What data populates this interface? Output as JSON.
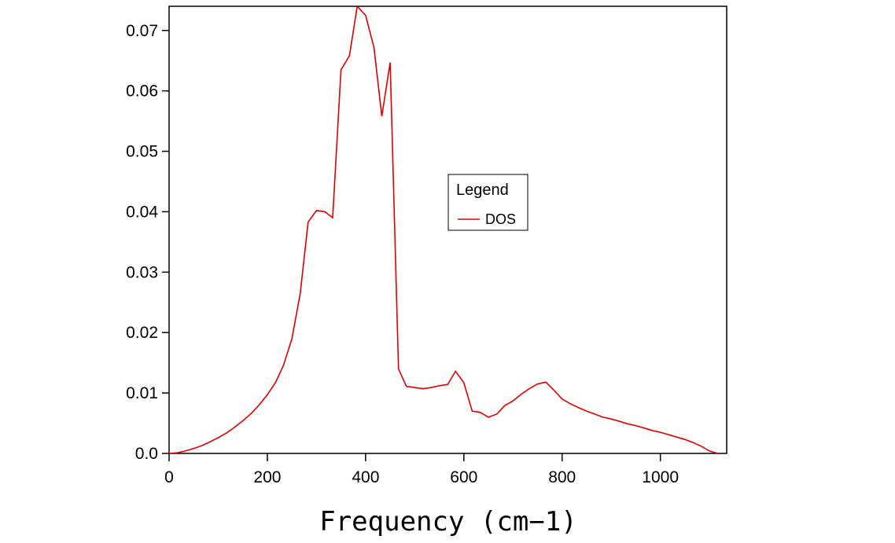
{
  "chart_data": {
    "type": "line",
    "title": "",
    "xlabel": "Frequency (cm−1)",
    "ylabel": "",
    "xlim": [
      0,
      1135
    ],
    "ylim": [
      0,
      0.074
    ],
    "x_ticks": [
      0,
      200,
      400,
      600,
      800,
      1000
    ],
    "y_ticks": [
      0.0,
      0.01,
      0.02,
      0.03,
      0.04,
      0.05,
      0.06,
      0.07
    ],
    "x_tick_labels": [
      "0",
      "200",
      "400",
      "600",
      "800",
      "1000"
    ],
    "y_tick_labels": [
      "0.0",
      "0.01",
      "0.02",
      "0.03",
      "0.04",
      "0.05",
      "0.06",
      "0.07"
    ],
    "grid": false,
    "legend": {
      "title": "Legend",
      "placement": "center-right"
    },
    "series": [
      {
        "name": "DOS",
        "color": "#dd0000",
        "x": [
          0,
          17,
          33,
          50,
          67,
          83,
          100,
          117,
          133,
          150,
          167,
          183,
          200,
          217,
          233,
          250,
          267,
          283,
          300,
          317,
          333,
          350,
          367,
          383,
          400,
          417,
          433,
          450,
          467,
          483,
          500,
          517,
          533,
          550,
          567,
          583,
          600,
          617,
          633,
          650,
          667,
          683,
          700,
          717,
          733,
          750,
          767,
          783,
          800,
          817,
          833,
          850,
          867,
          883,
          900,
          917,
          933,
          950,
          967,
          983,
          1000,
          1017,
          1033,
          1050,
          1067,
          1083,
          1100,
          1117
        ],
        "y": [
          0.0,
          0.0001,
          0.0004,
          0.0008,
          0.0013,
          0.0019,
          0.0026,
          0.0034,
          0.0043,
          0.0054,
          0.0066,
          0.008,
          0.0097,
          0.0118,
          0.0146,
          0.019,
          0.0265,
          0.0383,
          0.0402,
          0.04,
          0.039,
          0.0635,
          0.0658,
          0.074,
          0.0725,
          0.0672,
          0.0558,
          0.0647,
          0.014,
          0.0111,
          0.0109,
          0.0107,
          0.0109,
          0.0112,
          0.0114,
          0.0136,
          0.0117,
          0.007,
          0.0068,
          0.006,
          0.0065,
          0.0079,
          0.0087,
          0.0098,
          0.0107,
          0.0115,
          0.0118,
          0.0105,
          0.009,
          0.0082,
          0.0076,
          0.007,
          0.0065,
          0.006,
          0.0057,
          0.0053,
          0.0049,
          0.0046,
          0.0042,
          0.0038,
          0.0035,
          0.0031,
          0.0027,
          0.0023,
          0.0018,
          0.0012,
          0.0004,
          0.0
        ]
      }
    ]
  }
}
